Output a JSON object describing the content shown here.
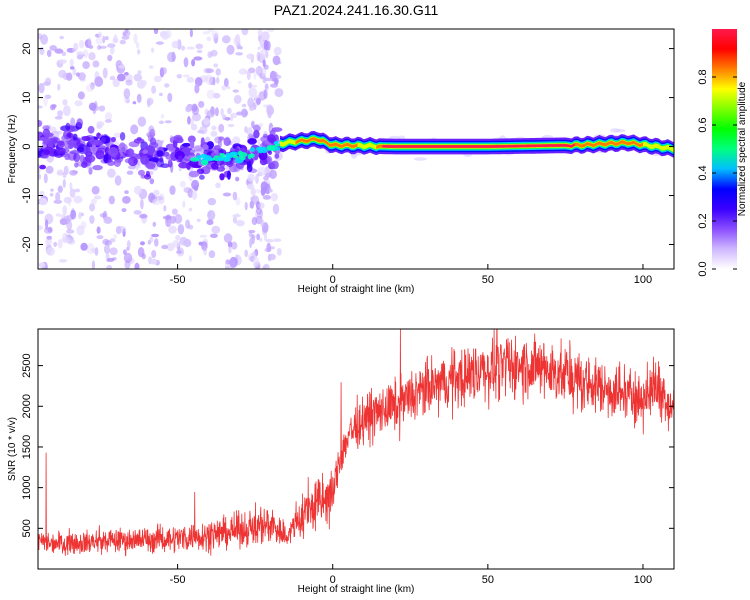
{
  "title": "PAZ1.2024.241.16.30.G11",
  "chart_data": [
    {
      "type": "heatmap",
      "xlabel": "Height of straight line (km)",
      "ylabel": "Frequency (Hz)",
      "xlim": [
        -95,
        110
      ],
      "ylim": [
        -25,
        24
      ],
      "xticks": [
        -50,
        0,
        50,
        100
      ],
      "yticks": [
        -20,
        -10,
        0,
        10,
        20
      ],
      "colorbar": {
        "label": "Normalized spectral amplitude",
        "range": [
          0,
          1
        ],
        "ticks": [
          0.0,
          0.2,
          0.4,
          0.6,
          0.8
        ],
        "colors": [
          "#ffffff",
          "#cfb8ff",
          "#8a4dff",
          "#3a00ff",
          "#0000ff",
          "#00bfff",
          "#00ff7f",
          "#00ff00",
          "#7fff00",
          "#ffff00",
          "#ff7f00",
          "#ff0000",
          "#ff1a4d"
        ]
      },
      "ridge": [
        {
          "x": -90,
          "f": 0.5
        },
        {
          "x": -80,
          "f": 0.5
        },
        {
          "x": -70,
          "f": -1
        },
        {
          "x": -60,
          "f": -2
        },
        {
          "x": -50,
          "f": -1
        },
        {
          "x": -40,
          "f": -2.5
        },
        {
          "x": -30,
          "f": -2
        },
        {
          "x": -20,
          "f": 0
        },
        {
          "x": -15,
          "f": 0.8
        },
        {
          "x": -5,
          "f": 1.5
        },
        {
          "x": 0,
          "f": 0.3
        },
        {
          "x": 20,
          "f": 0
        },
        {
          "x": 50,
          "f": 0
        },
        {
          "x": 80,
          "f": 0.3
        },
        {
          "x": 95,
          "f": 0.8
        },
        {
          "x": 110,
          "f": -0.5
        }
      ]
    },
    {
      "type": "line",
      "xlabel": "Height of straight line (km)",
      "ylabel": "SNR (10 * v/v)",
      "xlim": [
        -95,
        110
      ],
      "ylim": [
        0,
        2950
      ],
      "xticks": [
        -50,
        0,
        50,
        100
      ],
      "yticks": [
        500,
        1000,
        1500,
        2000,
        2500
      ],
      "color": "#ee3333",
      "series_trend": {
        "x": [
          -95,
          -80,
          -70,
          -60,
          -50,
          -40,
          -30,
          -20,
          -15,
          -10,
          -5,
          0,
          2,
          5,
          10,
          20,
          30,
          40,
          50,
          60,
          70,
          80,
          90,
          100,
          105,
          110
        ],
        "y": [
          320,
          330,
          350,
          360,
          380,
          420,
          480,
          560,
          400,
          650,
          800,
          900,
          1300,
          1650,
          1850,
          2000,
          2200,
          2350,
          2450,
          2500,
          2450,
          2300,
          2200,
          2100,
          2250,
          1950
        ]
      }
    }
  ]
}
